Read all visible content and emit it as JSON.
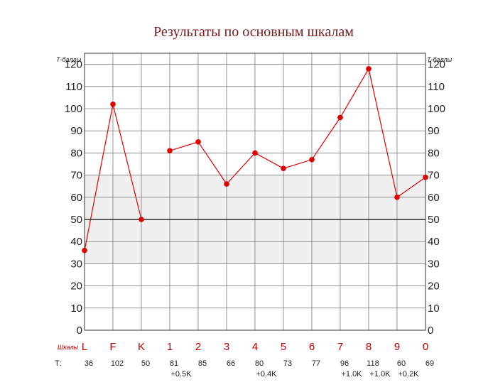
{
  "chart_data": {
    "type": "line",
    "title": "Результаты по основным шкалам",
    "ylabel": "Т-баллы",
    "xlabel": "Шкалы",
    "ylim": [
      0,
      125
    ],
    "yticks": [
      0,
      10,
      20,
      30,
      40,
      50,
      60,
      70,
      80,
      90,
      100,
      110,
      120
    ],
    "norm_band": [
      30,
      70
    ],
    "reference_line": 50,
    "grid": true,
    "categories": [
      "L",
      "F",
      "K",
      "1",
      "2",
      "3",
      "4",
      "5",
      "6",
      "7",
      "8",
      "9",
      "0"
    ],
    "series": [
      {
        "values": [
          36,
          102,
          50,
          81,
          85,
          66,
          80,
          73,
          77,
          96,
          118,
          60,
          69
        ],
        "color": "#e00000"
      }
    ],
    "segments": [
      [
        0,
        1,
        2
      ],
      [
        3,
        4,
        5,
        6,
        7,
        8,
        9,
        10,
        11,
        12
      ]
    ],
    "t_row_label": "Т:",
    "t_row": [
      "36",
      "102",
      "50",
      "81",
      "85",
      "66",
      "80",
      "73",
      "77",
      "96",
      "118",
      "60",
      "69"
    ],
    "k_corrections": [
      "",
      "",
      "",
      "+0.5K",
      "",
      "",
      "+0.4K",
      "",
      "",
      "+1.0K",
      "+1.0K",
      "+0.2K",
      ""
    ],
    "colors": {
      "line": "#e00000",
      "band": "#f0f0f0",
      "grid": "#555555",
      "category": "#c00000",
      "title": "#7a1a1a"
    }
  }
}
